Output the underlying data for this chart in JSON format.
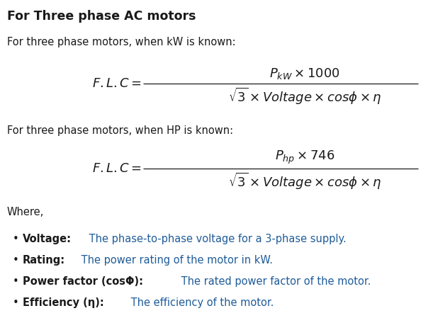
{
  "bg_color": "#ffffff",
  "title": "For Three phase AC motors",
  "text_color": "#1a1a1a",
  "blue_color": "#1f5c99",
  "heading1": "For three phase motors, when kW is known:",
  "heading2": "For three phase motors, when HP is known:",
  "where_label": "Where,",
  "bullets": [
    {
      "bold": "Voltage:",
      "normal": " The phase-to-phase voltage for a 3-phase supply."
    },
    {
      "bold": "Rating:",
      "normal": " The power rating of the motor in kW."
    },
    {
      "bold": "Power factor (cosΦ):",
      "normal": " The rated power factor of the motor."
    },
    {
      "bold": "Efficiency (η):",
      "normal": " The efficiency of the motor."
    }
  ],
  "figsize": [
    6.11,
    4.49
  ],
  "dpi": 100
}
